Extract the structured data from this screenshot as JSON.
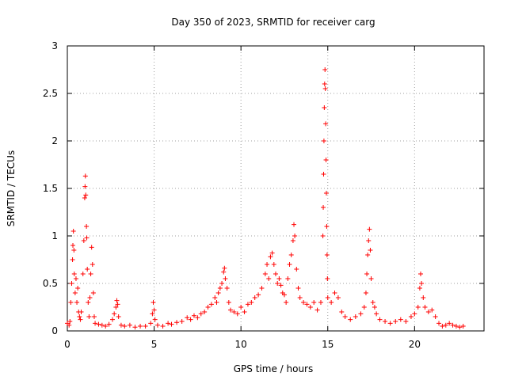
{
  "chart_data": {
    "type": "scatter",
    "title": "Day 350 of 2023, SRMTID for receiver carg",
    "xlabel": "GPS time / hours",
    "ylabel": "SRMTID / TECUs",
    "xlim": [
      0,
      24
    ],
    "ylim": [
      0,
      3
    ],
    "x_ticks": [
      0,
      5,
      10,
      15,
      20
    ],
    "x_tick_labels": [
      "0",
      "5",
      "10",
      "15",
      "20"
    ],
    "y_ticks": [
      0,
      0.5,
      1,
      1.5,
      2,
      2.5,
      3
    ],
    "y_tick_labels": [
      "0",
      "0.5",
      "1",
      "1.5",
      "2",
      "2.5",
      "3"
    ],
    "grid": true,
    "marker": "+",
    "series": [
      {
        "name": "carg",
        "color": "#ff0000",
        "points": [
          [
            0.0,
            0.08
          ],
          [
            0.1,
            0.06
          ],
          [
            0.15,
            0.1
          ],
          [
            0.2,
            0.3
          ],
          [
            0.25,
            0.5
          ],
          [
            0.3,
            0.75
          ],
          [
            0.32,
            0.9
          ],
          [
            0.35,
            1.05
          ],
          [
            0.38,
            0.85
          ],
          [
            0.4,
            0.6
          ],
          [
            0.45,
            0.4
          ],
          [
            0.5,
            0.55
          ],
          [
            0.55,
            0.3
          ],
          [
            0.6,
            0.45
          ],
          [
            0.65,
            0.2
          ],
          [
            0.7,
            0.15
          ],
          [
            0.75,
            0.12
          ],
          [
            0.8,
            0.2
          ],
          [
            0.9,
            0.6
          ],
          [
            0.95,
            0.95
          ],
          [
            1.0,
            1.4
          ],
          [
            1.02,
            1.52
          ],
          [
            1.04,
            1.63
          ],
          [
            1.06,
            1.43
          ],
          [
            1.1,
            1.1
          ],
          [
            1.12,
            0.98
          ],
          [
            1.15,
            0.65
          ],
          [
            1.2,
            0.3
          ],
          [
            1.25,
            0.15
          ],
          [
            1.3,
            0.35
          ],
          [
            1.35,
            0.6
          ],
          [
            1.4,
            0.88
          ],
          [
            1.45,
            0.7
          ],
          [
            1.5,
            0.4
          ],
          [
            1.55,
            0.15
          ],
          [
            1.6,
            0.08
          ],
          [
            1.8,
            0.07
          ],
          [
            2.0,
            0.06
          ],
          [
            2.2,
            0.05
          ],
          [
            2.4,
            0.07
          ],
          [
            2.6,
            0.12
          ],
          [
            2.7,
            0.18
          ],
          [
            2.8,
            0.25
          ],
          [
            2.85,
            0.32
          ],
          [
            2.9,
            0.28
          ],
          [
            2.95,
            0.15
          ],
          [
            3.1,
            0.06
          ],
          [
            3.3,
            0.05
          ],
          [
            3.6,
            0.06
          ],
          [
            3.9,
            0.04
          ],
          [
            4.2,
            0.05
          ],
          [
            4.5,
            0.05
          ],
          [
            4.8,
            0.08
          ],
          [
            4.9,
            0.18
          ],
          [
            4.95,
            0.3
          ],
          [
            5.0,
            0.22
          ],
          [
            5.05,
            0.12
          ],
          [
            5.2,
            0.06
          ],
          [
            5.5,
            0.05
          ],
          [
            5.8,
            0.08
          ],
          [
            6.0,
            0.07
          ],
          [
            6.3,
            0.09
          ],
          [
            6.6,
            0.1
          ],
          [
            6.9,
            0.14
          ],
          [
            7.1,
            0.12
          ],
          [
            7.3,
            0.16
          ],
          [
            7.5,
            0.14
          ],
          [
            7.7,
            0.18
          ],
          [
            7.9,
            0.2
          ],
          [
            8.1,
            0.25
          ],
          [
            8.3,
            0.28
          ],
          [
            8.5,
            0.35
          ],
          [
            8.6,
            0.3
          ],
          [
            8.7,
            0.4
          ],
          [
            8.8,
            0.45
          ],
          [
            8.9,
            0.5
          ],
          [
            9.0,
            0.62
          ],
          [
            9.05,
            0.66
          ],
          [
            9.1,
            0.55
          ],
          [
            9.2,
            0.45
          ],
          [
            9.3,
            0.3
          ],
          [
            9.4,
            0.22
          ],
          [
            9.6,
            0.2
          ],
          [
            9.8,
            0.18
          ],
          [
            10.0,
            0.25
          ],
          [
            10.2,
            0.2
          ],
          [
            10.4,
            0.28
          ],
          [
            10.6,
            0.3
          ],
          [
            10.8,
            0.35
          ],
          [
            11.0,
            0.38
          ],
          [
            11.2,
            0.45
          ],
          [
            11.4,
            0.6
          ],
          [
            11.5,
            0.7
          ],
          [
            11.6,
            0.55
          ],
          [
            11.7,
            0.78
          ],
          [
            11.8,
            0.82
          ],
          [
            11.9,
            0.7
          ],
          [
            12.0,
            0.6
          ],
          [
            12.1,
            0.5
          ],
          [
            12.2,
            0.55
          ],
          [
            12.3,
            0.48
          ],
          [
            12.4,
            0.4
          ],
          [
            12.5,
            0.38
          ],
          [
            12.6,
            0.3
          ],
          [
            12.7,
            0.55
          ],
          [
            12.8,
            0.7
          ],
          [
            12.9,
            0.8
          ],
          [
            13.0,
            0.95
          ],
          [
            13.05,
            1.12
          ],
          [
            13.1,
            1.0
          ],
          [
            13.2,
            0.65
          ],
          [
            13.3,
            0.45
          ],
          [
            13.4,
            0.35
          ],
          [
            13.6,
            0.3
          ],
          [
            13.8,
            0.28
          ],
          [
            14.0,
            0.25
          ],
          [
            14.2,
            0.3
          ],
          [
            14.4,
            0.22
          ],
          [
            14.6,
            0.3
          ],
          [
            14.72,
            1.0
          ],
          [
            14.74,
            1.3
          ],
          [
            14.76,
            1.65
          ],
          [
            14.78,
            2.0
          ],
          [
            14.8,
            2.35
          ],
          [
            14.82,
            2.6
          ],
          [
            14.84,
            2.75
          ],
          [
            14.86,
            2.55
          ],
          [
            14.88,
            2.18
          ],
          [
            14.9,
            1.8
          ],
          [
            14.92,
            1.45
          ],
          [
            14.94,
            1.1
          ],
          [
            14.96,
            0.8
          ],
          [
            14.98,
            0.55
          ],
          [
            15.0,
            0.35
          ],
          [
            15.2,
            0.3
          ],
          [
            15.4,
            0.4
          ],
          [
            15.6,
            0.35
          ],
          [
            15.8,
            0.2
          ],
          [
            16.0,
            0.15
          ],
          [
            16.3,
            0.12
          ],
          [
            16.6,
            0.15
          ],
          [
            16.9,
            0.18
          ],
          [
            17.1,
            0.25
          ],
          [
            17.2,
            0.4
          ],
          [
            17.25,
            0.6
          ],
          [
            17.3,
            0.8
          ],
          [
            17.35,
            0.95
          ],
          [
            17.4,
            1.07
          ],
          [
            17.45,
            0.85
          ],
          [
            17.5,
            0.55
          ],
          [
            17.6,
            0.3
          ],
          [
            17.7,
            0.25
          ],
          [
            17.8,
            0.18
          ],
          [
            18.0,
            0.12
          ],
          [
            18.3,
            0.1
          ],
          [
            18.6,
            0.08
          ],
          [
            18.9,
            0.1
          ],
          [
            19.2,
            0.12
          ],
          [
            19.5,
            0.1
          ],
          [
            19.8,
            0.15
          ],
          [
            20.0,
            0.18
          ],
          [
            20.2,
            0.25
          ],
          [
            20.3,
            0.45
          ],
          [
            20.35,
            0.6
          ],
          [
            20.4,
            0.5
          ],
          [
            20.5,
            0.35
          ],
          [
            20.6,
            0.25
          ],
          [
            20.8,
            0.2
          ],
          [
            21.0,
            0.22
          ],
          [
            21.2,
            0.15
          ],
          [
            21.4,
            0.08
          ],
          [
            21.6,
            0.05
          ],
          [
            21.8,
            0.06
          ],
          [
            22.0,
            0.08
          ],
          [
            22.2,
            0.06
          ],
          [
            22.4,
            0.05
          ],
          [
            22.6,
            0.04
          ],
          [
            22.8,
            0.05
          ]
        ]
      }
    ]
  }
}
